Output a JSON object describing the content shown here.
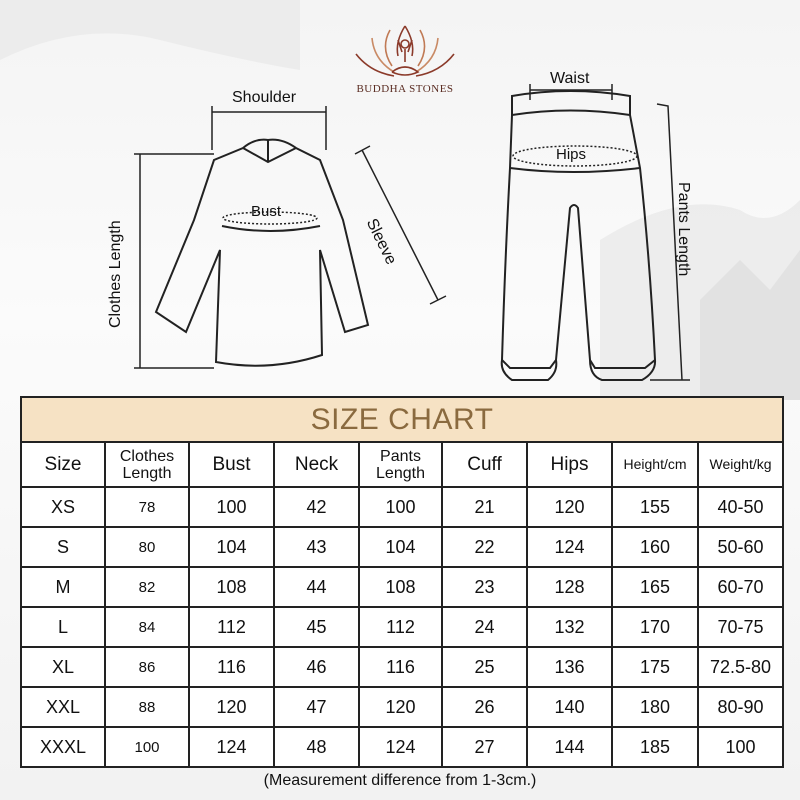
{
  "brand": {
    "name": "BUDDHA STONES",
    "logo_icon": "lotus-meditation-icon",
    "logo_color": "#8b3a2a"
  },
  "diagram": {
    "top_labels": {
      "shoulder": "Shoulder",
      "bust": "Bust",
      "sleeve": "Sleeve",
      "clothes_length": "Clothes Length"
    },
    "pants_labels": {
      "waist": "Waist",
      "hips": "Hips",
      "pants_length": "Pants Length"
    }
  },
  "size_chart": {
    "title": "SIZE CHART",
    "title_color": "#8a6a3f",
    "header_bg": "#f6e2c4",
    "columns": [
      "Size",
      "Clothes Length",
      "Bust",
      "Neck",
      "Pants Length",
      "Cuff",
      "Hips",
      "Height/cm",
      "Weight/kg"
    ],
    "rows": [
      [
        "XS",
        "78",
        "100",
        "42",
        "100",
        "21",
        "120",
        "155",
        "40-50"
      ],
      [
        "S",
        "80",
        "104",
        "43",
        "104",
        "22",
        "124",
        "160",
        "50-60"
      ],
      [
        "M",
        "82",
        "108",
        "44",
        "108",
        "23",
        "128",
        "165",
        "60-70"
      ],
      [
        "L",
        "84",
        "112",
        "45",
        "112",
        "24",
        "132",
        "170",
        "70-75"
      ],
      [
        "XL",
        "86",
        "116",
        "46",
        "116",
        "25",
        "136",
        "175",
        "72.5-80"
      ],
      [
        "XXL",
        "88",
        "120",
        "47",
        "120",
        "26",
        "140",
        "180",
        "80-90"
      ],
      [
        "XXXL",
        "100",
        "124",
        "48",
        "124",
        "27",
        "144",
        "185",
        "100"
      ]
    ]
  },
  "note": "(Measurement difference from 1-3cm.)"
}
